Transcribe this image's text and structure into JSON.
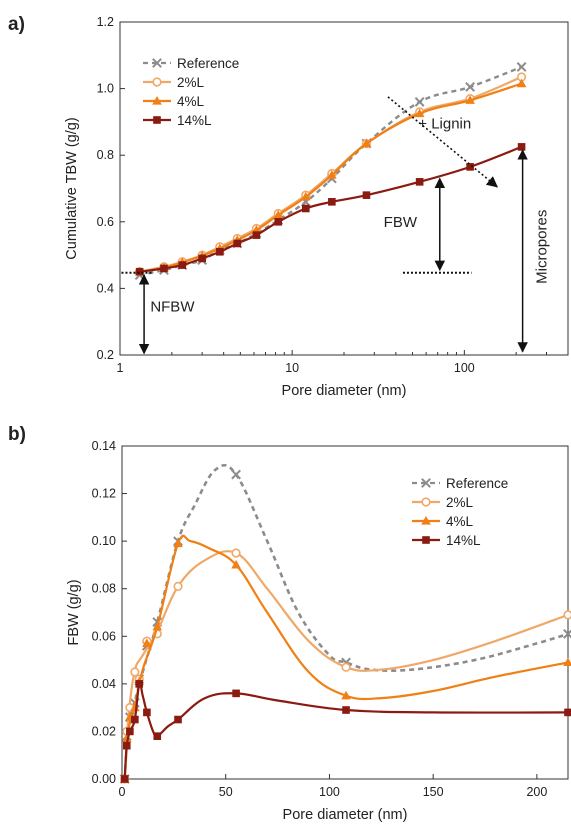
{
  "chart_data": [
    {
      "panel_label": "a)",
      "type": "line",
      "x_scale": "log",
      "xlabel": "Pore diameter (nm)",
      "ylabel": "Cumulative TBW (g/g)",
      "xlim": [
        1,
        400
      ],
      "ylim": [
        0.2,
        1.2
      ],
      "x_ticks": [
        1,
        10,
        100
      ],
      "x_tick_labels": [
        "1",
        "10",
        "100"
      ],
      "y_ticks": [
        0.2,
        0.4,
        0.6,
        0.8,
        1.0,
        1.2
      ],
      "y_tick_labels": [
        "0.2",
        "0.4",
        "0.6",
        "0.8",
        "1.0",
        "1.2"
      ],
      "legend_position": "top-left",
      "series": [
        {
          "name": "Reference",
          "color": "#8c8c8c",
          "style": "dashed",
          "marker": "x",
          "x": [
            1.3,
            1.8,
            2.3,
            3.0,
            3.8,
            4.8,
            6.2,
            8.3,
            12,
            17,
            27,
            55,
            108,
            215
          ],
          "y": [
            0.44,
            0.455,
            0.47,
            0.485,
            0.515,
            0.535,
            0.565,
            0.605,
            0.66,
            0.73,
            0.835,
            0.96,
            1.005,
            1.065
          ]
        },
        {
          "name": "2%L",
          "color": "#f0a868",
          "style": "solid",
          "marker": "circle-open",
          "x": [
            1.3,
            1.8,
            2.3,
            3.0,
            3.8,
            4.8,
            6.2,
            8.3,
            12,
            17,
            27,
            55,
            108,
            215
          ],
          "y": [
            0.45,
            0.465,
            0.48,
            0.5,
            0.525,
            0.55,
            0.58,
            0.625,
            0.68,
            0.745,
            0.835,
            0.93,
            0.97,
            1.035
          ]
        },
        {
          "name": "4%L",
          "color": "#f07f14",
          "style": "solid",
          "marker": "triangle",
          "x": [
            1.3,
            1.8,
            2.3,
            3.0,
            3.8,
            4.8,
            6.2,
            8.3,
            12,
            17,
            27,
            55,
            108,
            215
          ],
          "y": [
            0.45,
            0.462,
            0.478,
            0.498,
            0.52,
            0.545,
            0.575,
            0.62,
            0.675,
            0.74,
            0.835,
            0.925,
            0.965,
            1.015
          ]
        },
        {
          "name": "14%L",
          "color": "#8b1a10",
          "style": "solid",
          "marker": "square",
          "x": [
            1.3,
            1.8,
            2.3,
            3.0,
            3.8,
            4.8,
            6.2,
            8.3,
            12,
            17,
            27,
            55,
            108,
            215
          ],
          "y": [
            0.45,
            0.46,
            0.47,
            0.49,
            0.51,
            0.535,
            0.56,
            0.6,
            0.64,
            0.66,
            0.68,
            0.72,
            0.765,
            0.825
          ]
        }
      ],
      "annotations": {
        "lignin": "+ Lignin",
        "fbw": "FBW",
        "nfbw": "NFBW",
        "micropores": "Micropores"
      }
    },
    {
      "panel_label": "b)",
      "type": "line",
      "x_scale": "linear",
      "xlabel": "Pore diameter (nm)",
      "ylabel": "FBW (g/g)",
      "xlim": [
        0,
        215
      ],
      "ylim": [
        0,
        0.14
      ],
      "x_ticks": [
        0,
        50,
        100,
        150,
        200
      ],
      "x_tick_labels": [
        "0",
        "50",
        "100",
        "150",
        "200"
      ],
      "y_ticks": [
        0,
        0.02,
        0.04,
        0.06,
        0.08,
        0.1,
        0.12,
        0.14
      ],
      "y_tick_labels": [
        "0.00",
        "0.02",
        "0.04",
        "0.06",
        "0.08",
        "0.10",
        "0.12",
        "0.14"
      ],
      "legend_position": "top-right",
      "series": [
        {
          "name": "Reference",
          "color": "#8c8c8c",
          "style": "dashed",
          "marker": "x",
          "x": [
            1.3,
            2.3,
            3.8,
            6.2,
            8.3,
            12,
            17,
            27,
            55,
            108,
            215
          ],
          "y": [
            0,
            0.018,
            0.026,
            0.032,
            0.042,
            0.056,
            0.066,
            0.1,
            0.128,
            0.049,
            0.061
          ],
          "curve": [
            [
              1.3,
              0
            ],
            [
              3,
              0.022
            ],
            [
              6,
              0.032
            ],
            [
              10,
              0.045
            ],
            [
              17,
              0.066
            ],
            [
              27,
              0.1
            ],
            [
              35,
              0.115
            ],
            [
              45,
              0.13
            ],
            [
              55,
              0.128
            ],
            [
              70,
              0.1
            ],
            [
              85,
              0.07
            ],
            [
              100,
              0.052
            ],
            [
              108,
              0.049
            ],
            [
              120,
              0.046
            ],
            [
              140,
              0.046
            ],
            [
              170,
              0.05
            ],
            [
              200,
              0.057
            ],
            [
              215,
              0.061
            ]
          ]
        },
        {
          "name": "2%L",
          "color": "#f0a868",
          "style": "solid",
          "marker": "circle-open",
          "x": [
            1.3,
            2.3,
            3.8,
            6.2,
            8.3,
            12,
            17,
            27,
            55,
            108,
            215
          ],
          "y": [
            0,
            0.02,
            0.03,
            0.045,
            0.042,
            0.058,
            0.061,
            0.081,
            0.095,
            0.047,
            0.069
          ],
          "curve": [
            [
              1.3,
              0
            ],
            [
              3,
              0.025
            ],
            [
              6,
              0.045
            ],
            [
              10,
              0.052
            ],
            [
              17,
              0.062
            ],
            [
              27,
              0.081
            ],
            [
              40,
              0.092
            ],
            [
              55,
              0.095
            ],
            [
              70,
              0.08
            ],
            [
              90,
              0.058
            ],
            [
              108,
              0.047
            ],
            [
              125,
              0.046
            ],
            [
              150,
              0.05
            ],
            [
              180,
              0.058
            ],
            [
              215,
              0.069
            ]
          ]
        },
        {
          "name": "4%L",
          "color": "#f07f14",
          "style": "solid",
          "marker": "triangle",
          "x": [
            1.3,
            2.3,
            3.8,
            6.2,
            8.3,
            12,
            17,
            27,
            55,
            108,
            215
          ],
          "y": [
            0,
            0.017,
            0.026,
            0.03,
            0.041,
            0.057,
            0.064,
            0.099,
            0.09,
            0.035,
            0.049
          ],
          "curve": [
            [
              1.3,
              0
            ],
            [
              3,
              0.02
            ],
            [
              6,
              0.03
            ],
            [
              10,
              0.046
            ],
            [
              17,
              0.064
            ],
            [
              27,
              0.099
            ],
            [
              33,
              0.1
            ],
            [
              42,
              0.097
            ],
            [
              55,
              0.09
            ],
            [
              70,
              0.07
            ],
            [
              90,
              0.045
            ],
            [
              108,
              0.035
            ],
            [
              125,
              0.034
            ],
            [
              150,
              0.037
            ],
            [
              180,
              0.043
            ],
            [
              215,
              0.049
            ]
          ]
        },
        {
          "name": "14%L",
          "color": "#8b1a10",
          "style": "solid",
          "marker": "square",
          "x": [
            1.3,
            2.3,
            3.8,
            6.2,
            8.3,
            12,
            17,
            27,
            55,
            108,
            215
          ],
          "y": [
            0,
            0.014,
            0.02,
            0.025,
            0.04,
            0.028,
            0.018,
            0.025,
            0.036,
            0.029,
            0.028
          ],
          "curve": [
            [
              1.3,
              0
            ],
            [
              2.3,
              0.014
            ],
            [
              3.8,
              0.02
            ],
            [
              6.2,
              0.025
            ],
            [
              8.3,
              0.04
            ],
            [
              10,
              0.035
            ],
            [
              12,
              0.028
            ],
            [
              15,
              0.02
            ],
            [
              17,
              0.018
            ],
            [
              22,
              0.022
            ],
            [
              27,
              0.025
            ],
            [
              40,
              0.034
            ],
            [
              55,
              0.036
            ],
            [
              75,
              0.033
            ],
            [
              108,
              0.029
            ],
            [
              150,
              0.028
            ],
            [
              215,
              0.028
            ]
          ]
        }
      ]
    }
  ]
}
